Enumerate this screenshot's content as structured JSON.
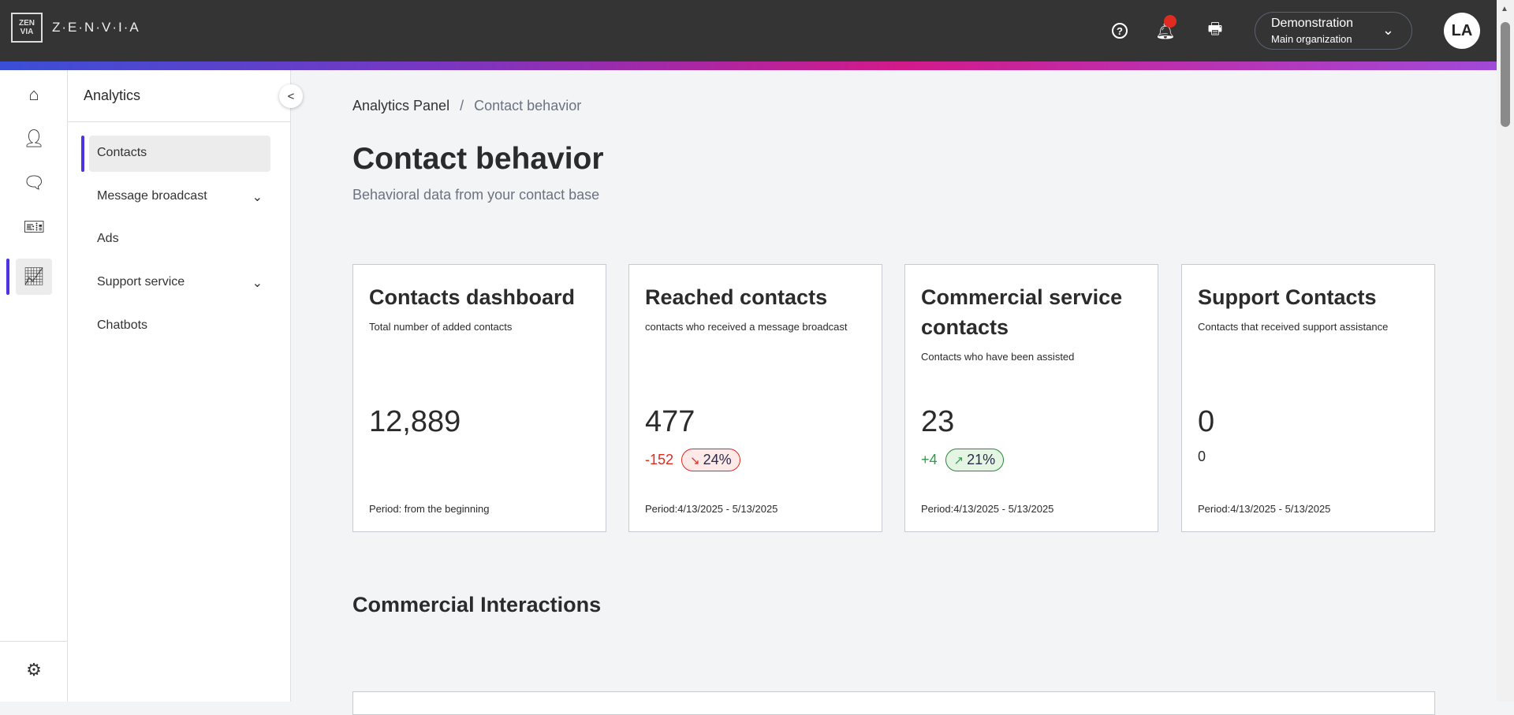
{
  "header": {
    "logo_mark": "ZEN VIA",
    "logo_text": "Z·E·N·V·I·A",
    "help_icon": "?",
    "org_name": "Demonstration",
    "org_sub": "Main organization",
    "avatar": "LA",
    "notification_dot_color": "#e02b20"
  },
  "rail": {
    "items": [
      "home-icon",
      "contacts-icon",
      "chat-icon",
      "ticket-icon",
      "analytics-icon"
    ],
    "settings": "gear-icon"
  },
  "submenu": {
    "title": "Analytics",
    "items": [
      {
        "label": "Contacts",
        "active": true
      },
      {
        "label": "Message broadcast",
        "expandable": true
      },
      {
        "label": "Ads"
      },
      {
        "label": "Support service",
        "expandable": true
      },
      {
        "label": "Chatbots"
      }
    ]
  },
  "breadcrumb": {
    "parent": "Analytics Panel",
    "sep": "/",
    "current": "Contact behavior"
  },
  "page": {
    "title": "Contact behavior",
    "subtitle": "Behavioral data from your contact base",
    "section": "Commercial Interactions"
  },
  "cards": [
    {
      "title": "Contacts dashboard",
      "desc": "Total number of added contacts",
      "value": "12,889",
      "period": "Period: from the beginning"
    },
    {
      "title": "Reached contacts",
      "desc": "contacts who received a message broadcast",
      "value": "477",
      "delta": "-152",
      "pct": "24%",
      "arrow": "↘",
      "period": "Period:4/13/2025 - 5/13/2025"
    },
    {
      "title": "Commercial service contacts",
      "desc": "Contacts who have been assisted",
      "value": "23",
      "delta": "+4",
      "pct": "21%",
      "arrow": "↗",
      "period": "Period:4/13/2025 - 5/13/2025"
    },
    {
      "title": "Support Contacts",
      "desc": "Contacts that received support assistance",
      "value": "0",
      "delta": "0",
      "period": "Period:4/13/2025 - 5/13/2025"
    }
  ]
}
